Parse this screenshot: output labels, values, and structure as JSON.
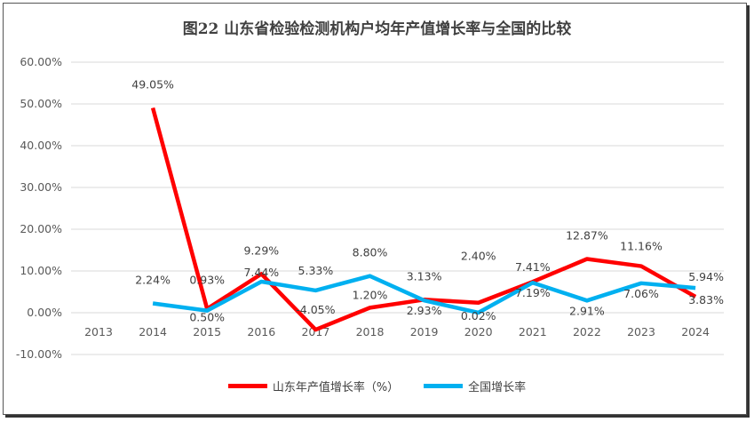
{
  "chart_data": {
    "type": "line",
    "title": "图22  山东省检验检测机构户均年产值增长率与全国的比较",
    "categories": [
      "2013",
      "2014",
      "2015",
      "2016",
      "2017",
      "2018",
      "2019",
      "2020",
      "2021",
      "2022",
      "2023",
      "2024"
    ],
    "y_ticks": [
      "60.00%",
      "50.00%",
      "40.00%",
      "30.00%",
      "20.00%",
      "10.00%",
      "0.00%",
      "-10.00%"
    ],
    "ylim": [
      -10,
      60
    ],
    "grid": true,
    "legend_position": "bottom",
    "series": [
      {
        "name": "山东年产值增长率（%）",
        "color": "#ff0000",
        "values": [
          null,
          49.05,
          0.93,
          9.29,
          -4.05,
          1.2,
          3.13,
          2.4,
          7.41,
          12.87,
          11.16,
          3.83
        ],
        "labels": [
          "",
          "49.05%",
          "0.93%",
          "9.29%",
          "-4.05%",
          "1.20%",
          "3.13%",
          "2.40%",
          "7.41%",
          "12.87%",
          "11.16%",
          "3.83%"
        ]
      },
      {
        "name": "全国增长率",
        "color": "#00b0f0",
        "values": [
          null,
          2.24,
          0.5,
          7.44,
          5.33,
          8.8,
          2.93,
          0.02,
          7.19,
          2.91,
          7.06,
          5.94
        ],
        "labels": [
          "",
          "2.24%",
          "0.50%",
          "7.44%",
          "5.33%",
          "8.80%",
          "2.93%",
          "0.02%",
          "7.19%",
          "2.91%",
          "7.06%",
          "5.94%"
        ]
      }
    ]
  }
}
